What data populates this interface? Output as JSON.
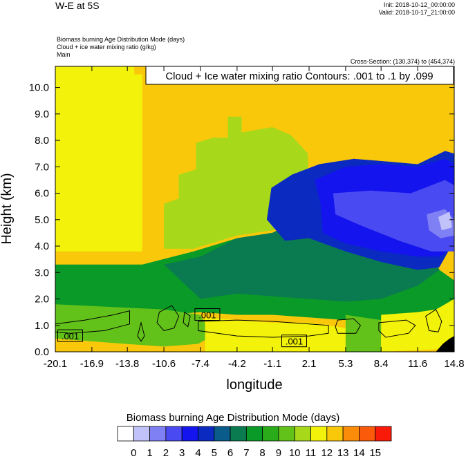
{
  "header": {
    "title": "W-E at 5S",
    "init": "Init: 2018-10-12_00:00:00",
    "valid": "Valid: 2018-10-17_21:00:00",
    "fields": [
      "Biomass burning Age Distribution Mode    (days)",
      "Cloud + ice water mixing ratio    (g/kg)",
      "Main"
    ],
    "cross_section": "Cross-Section: (130,374) to (454,374)"
  },
  "chart_data": {
    "type": "heatmap",
    "contour_title": "Cloud + Ice water mixing ratio Contours: .001 to .1 by .099",
    "xlabel": "longitude",
    "ylabel": "Height (km)",
    "xlim": [
      -20.1,
      14.8
    ],
    "ylim": [
      0,
      10.8
    ],
    "x_ticks": [
      "-20.1",
      "-16.9",
      "-13.8",
      "-10.6",
      "-7.4",
      "-4.2",
      "-1.1",
      "2.1",
      "5.3",
      "8.4",
      "11.6",
      "14.8"
    ],
    "y_ticks": [
      "0.0",
      "1.0",
      "2.0",
      "3.0",
      "4.0",
      "5.0",
      "6.0",
      "7.0",
      "8.0",
      "9.0",
      "10.0"
    ],
    "contour_labels": [
      {
        "text": ".001",
        "x": -18.8,
        "y": 0.6
      },
      {
        "text": ".001",
        "x": -6.8,
        "y": 1.4
      },
      {
        "text": ".001",
        "x": 0.8,
        "y": 0.4
      }
    ],
    "colorbar": {
      "title": "Biomass burning Age Distribution Mode  (days)",
      "labels": [
        "0",
        "1",
        "2",
        "3",
        "4",
        "5",
        "6",
        "7",
        "8",
        "9",
        "10",
        "11",
        "12",
        "13",
        "14",
        "15"
      ],
      "colors": [
        "#ffffff",
        "#c2c2fa",
        "#8080f5",
        "#4a4af2",
        "#1414ee",
        "#0a2ac0",
        "#0a5a8a",
        "#0a7a50",
        "#0a9a28",
        "#2aac1a",
        "#62c21a",
        "#a8d81a",
        "#f2f20a",
        "#fac80a",
        "#fa8c0a",
        "#fa5a0a",
        "#fa1a0a"
      ]
    },
    "regions": [
      {
        "level": 12,
        "poly": [
          [
            -20.1,
            10.8
          ],
          [
            -13.2,
            10.8
          ],
          [
            -13.2,
            10.5
          ],
          [
            -12.5,
            10.5
          ],
          [
            -12.5,
            3.8
          ],
          [
            -20.1,
            3.8
          ]
        ]
      },
      {
        "level": 8,
        "poly": [
          [
            -20.1,
            3.3
          ],
          [
            -12.5,
            3.3
          ],
          [
            -8.0,
            3.8
          ],
          [
            -4.2,
            4.3
          ],
          [
            -1.1,
            4.5
          ],
          [
            2.1,
            5.2
          ],
          [
            5.3,
            5.0
          ],
          [
            8.4,
            5.4
          ],
          [
            11.6,
            4.8
          ],
          [
            13.5,
            3.1
          ],
          [
            14.8,
            2.7
          ],
          [
            14.8,
            0.6
          ],
          [
            11.6,
            0.7
          ],
          [
            8.4,
            0.8
          ],
          [
            5.3,
            1.2
          ],
          [
            2.1,
            1.3
          ],
          [
            -1.1,
            1.4
          ],
          [
            -4.2,
            1.4
          ],
          [
            -7.4,
            1.5
          ],
          [
            -10.6,
            1.4
          ],
          [
            -20.1,
            1.4
          ]
        ]
      },
      {
        "level": 11,
        "poly": [
          [
            -10.6,
            3.9
          ],
          [
            -10.6,
            5.6
          ],
          [
            -9.3,
            5.8
          ],
          [
            -9.3,
            6.7
          ],
          [
            -7.8,
            6.9
          ],
          [
            -7.8,
            7.9
          ],
          [
            -6.3,
            8.1
          ],
          [
            -5.0,
            8.1
          ],
          [
            -5.0,
            8.9
          ],
          [
            -3.8,
            8.9
          ],
          [
            -3.8,
            8.3
          ],
          [
            -1.1,
            8.5
          ],
          [
            0.5,
            8.2
          ],
          [
            2.0,
            7.5
          ],
          [
            2.0,
            5.0
          ],
          [
            -1.1,
            4.6
          ],
          [
            -4.2,
            4.4
          ],
          [
            -8.0,
            3.9
          ]
        ]
      },
      {
        "level": 7,
        "poly": [
          [
            -10.6,
            3.3
          ],
          [
            -7.4,
            3.6
          ],
          [
            -4.2,
            4.3
          ],
          [
            -1.1,
            4.5
          ],
          [
            2.1,
            5.2
          ],
          [
            5.3,
            5.0
          ],
          [
            8.4,
            5.4
          ],
          [
            11.6,
            4.8
          ],
          [
            13.5,
            3.1
          ],
          [
            11.6,
            2.5
          ],
          [
            8.4,
            2.0
          ],
          [
            5.3,
            1.9
          ],
          [
            2.1,
            2.0
          ],
          [
            -1.1,
            2.1
          ],
          [
            -4.2,
            2.2
          ],
          [
            -7.4,
            2.0
          ]
        ]
      },
      {
        "level": 5,
        "poly": [
          [
            -1.6,
            5.0
          ],
          [
            -1.2,
            6.2
          ],
          [
            0.6,
            6.7
          ],
          [
            3.0,
            7.1
          ],
          [
            6.0,
            7.3
          ],
          [
            9.0,
            7.2
          ],
          [
            11.6,
            7.1
          ],
          [
            14.0,
            7.6
          ],
          [
            14.8,
            7.5
          ],
          [
            14.8,
            4.2
          ],
          [
            13.5,
            3.2
          ],
          [
            11.6,
            3.1
          ],
          [
            8.4,
            3.4
          ],
          [
            5.3,
            3.8
          ],
          [
            2.1,
            4.3
          ],
          [
            0.0,
            4.2
          ]
        ]
      },
      {
        "level": 4,
        "poly": [
          [
            2.6,
            6.5
          ],
          [
            5.3,
            7.0
          ],
          [
            8.4,
            7.1
          ],
          [
            11.6,
            7.0
          ],
          [
            14.0,
            7.3
          ],
          [
            14.8,
            7.1
          ],
          [
            14.8,
            4.0
          ],
          [
            13.5,
            3.6
          ],
          [
            11.6,
            3.6
          ],
          [
            8.4,
            3.8
          ],
          [
            5.3,
            4.1
          ],
          [
            3.3,
            4.5
          ],
          [
            3.1,
            5.6
          ]
        ]
      },
      {
        "level": 3,
        "poly": [
          [
            4.2,
            6.0
          ],
          [
            7.5,
            6.1
          ],
          [
            11.0,
            6.0
          ],
          [
            14.0,
            6.5
          ],
          [
            14.8,
            6.3
          ],
          [
            14.8,
            3.8
          ],
          [
            12.8,
            3.8
          ],
          [
            10.0,
            4.2
          ],
          [
            6.5,
            4.8
          ],
          [
            4.4,
            5.2
          ]
        ]
      },
      {
        "level": 2,
        "poly": [
          [
            12.4,
            5.2
          ],
          [
            14.0,
            5.4
          ],
          [
            14.8,
            5.0
          ],
          [
            14.8,
            4.4
          ],
          [
            13.6,
            4.3
          ],
          [
            12.6,
            4.6
          ]
        ]
      },
      {
        "level": 1,
        "poly": [
          [
            13.4,
            5.1
          ],
          [
            14.4,
            5.3
          ],
          [
            14.6,
            4.7
          ],
          [
            13.7,
            4.6
          ]
        ]
      },
      {
        "level": 10,
        "poly": [
          [
            -20.1,
            1.8
          ],
          [
            -10.6,
            1.6
          ],
          [
            -7.4,
            1.4
          ],
          [
            -6.4,
            0.6
          ],
          [
            -7.6,
            0.3
          ],
          [
            -10.6,
            0.2
          ],
          [
            -14.0,
            0.3
          ],
          [
            -17.0,
            0.4
          ],
          [
            -20.1,
            0.5
          ]
        ]
      },
      {
        "level": 12,
        "poly": [
          [
            -7.0,
            1.3
          ],
          [
            -4.2,
            1.2
          ],
          [
            -1.1,
            1.1
          ],
          [
            2.1,
            1.1
          ],
          [
            5.3,
            0.9
          ],
          [
            5.3,
            0.0
          ],
          [
            -7.0,
            0.0
          ]
        ]
      },
      {
        "level": 10,
        "poly": [
          [
            5.3,
            1.4
          ],
          [
            8.4,
            1.2
          ],
          [
            8.4,
            0.0
          ],
          [
            5.3,
            0.0
          ]
        ]
      },
      {
        "level": 12,
        "poly": [
          [
            8.4,
            1.4
          ],
          [
            11.6,
            1.5
          ],
          [
            13.2,
            1.6
          ],
          [
            14.8,
            2.0
          ],
          [
            14.8,
            0.6
          ],
          [
            14.2,
            0.4
          ],
          [
            13.4,
            0.1
          ],
          [
            8.4,
            0.0
          ]
        ]
      },
      {
        "level": 0,
        "poly": [
          [
            13.2,
            0.0
          ],
          [
            13.8,
            0.3
          ],
          [
            14.4,
            0.5
          ],
          [
            14.8,
            0.6
          ],
          [
            14.8,
            0.0
          ]
        ]
      }
    ],
    "contours": [
      [
        [
          -20.1,
          1.05
        ],
        [
          -17.5,
          1.2
        ],
        [
          -15.0,
          1.4
        ],
        [
          -13.6,
          1.55
        ],
        [
          -13.6,
          1.05
        ],
        [
          -15.8,
          0.8
        ],
        [
          -18.8,
          0.7
        ],
        [
          -20.1,
          0.75
        ]
      ],
      [
        [
          -12.9,
          0.6
        ],
        [
          -12.6,
          1.1
        ],
        [
          -12.3,
          0.6
        ],
        [
          -12.6,
          0.4
        ]
      ],
      [
        [
          -11.0,
          1.5
        ],
        [
          -9.9,
          1.75
        ],
        [
          -9.3,
          1.35
        ],
        [
          -9.7,
          0.9
        ],
        [
          -10.6,
          0.8
        ],
        [
          -11.2,
          1.1
        ]
      ],
      [
        [
          -8.8,
          1.5
        ],
        [
          -8.3,
          1.35
        ],
        [
          -8.5,
          0.95
        ],
        [
          -8.9,
          1.1
        ]
      ],
      [
        [
          -7.6,
          1.15
        ],
        [
          -4.2,
          1.2
        ],
        [
          -1.1,
          1.15
        ],
        [
          2.1,
          1.05
        ],
        [
          3.8,
          1.0
        ],
        [
          3.8,
          0.7
        ],
        [
          2.1,
          0.6
        ],
        [
          -1.1,
          0.55
        ],
        [
          -4.2,
          0.6
        ],
        [
          -7.6,
          0.8
        ]
      ],
      [
        [
          4.6,
          1.2
        ],
        [
          6.0,
          1.25
        ],
        [
          6.6,
          1.0
        ],
        [
          6.2,
          0.7
        ],
        [
          4.6,
          0.7
        ],
        [
          4.4,
          0.95
        ]
      ],
      [
        [
          8.2,
          1.1
        ],
        [
          10.6,
          1.2
        ],
        [
          11.4,
          1.0
        ],
        [
          10.8,
          0.7
        ],
        [
          8.8,
          0.55
        ],
        [
          8.2,
          0.8
        ]
      ],
      [
        [
          12.3,
          1.35
        ],
        [
          13.2,
          1.6
        ],
        [
          13.7,
          1.15
        ],
        [
          13.4,
          0.75
        ],
        [
          12.6,
          0.8
        ]
      ]
    ]
  }
}
